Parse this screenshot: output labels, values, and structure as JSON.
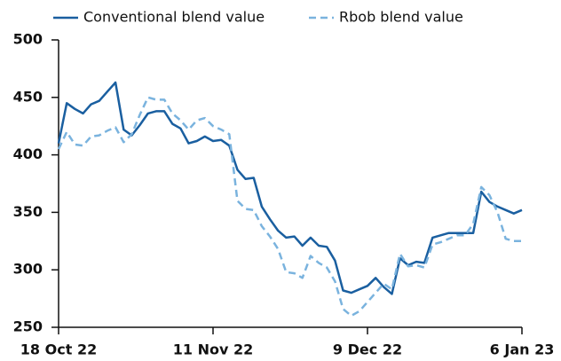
{
  "chart_data": {
    "type": "line",
    "categories": [
      "18 Oct 22",
      null,
      null,
      null,
      null,
      null,
      null,
      null,
      null,
      null,
      null,
      null,
      null,
      null,
      null,
      null,
      null,
      null,
      null,
      "11 Nov 22",
      null,
      null,
      null,
      null,
      null,
      null,
      null,
      null,
      null,
      null,
      null,
      null,
      null,
      null,
      null,
      null,
      null,
      null,
      "9 Dec 22",
      null,
      null,
      null,
      null,
      null,
      null,
      null,
      null,
      null,
      null,
      null,
      null,
      null,
      null,
      null,
      null,
      null,
      null,
      "6 Jan 23"
    ],
    "series": [
      {
        "name": "Conventional blend value",
        "color": "#1a5fa0",
        "dash": false,
        "values": [
          410,
          445,
          440,
          436,
          444,
          447,
          455,
          463,
          422,
          417,
          426,
          436,
          438,
          438,
          427,
          423,
          410,
          412,
          416,
          412,
          413,
          408,
          387,
          379,
          380,
          355,
          344,
          334,
          328,
          329,
          321,
          328,
          321,
          320,
          308,
          282,
          280,
          283,
          286,
          293,
          285,
          279,
          310,
          304,
          307,
          306,
          328,
          330,
          332,
          332,
          332,
          332,
          368,
          359,
          355,
          352,
          349,
          352
        ]
      },
      {
        "name": "Rbob blend value",
        "color": "#7ab3de",
        "dash": true,
        "values": [
          405,
          420,
          409,
          408,
          416,
          417,
          421,
          424,
          411,
          418,
          435,
          450,
          448,
          448,
          436,
          430,
          422,
          430,
          432,
          425,
          422,
          418,
          360,
          353,
          352,
          338,
          329,
          318,
          298,
          297,
          293,
          312,
          306,
          302,
          290,
          266,
          260,
          264,
          272,
          280,
          288,
          283,
          314,
          303,
          304,
          302,
          322,
          324,
          327,
          330,
          330,
          340,
          372,
          365,
          350,
          327,
          325,
          325
        ]
      }
    ],
    "ylim": [
      250,
      500
    ],
    "yticks": [
      250,
      300,
      350,
      400,
      450,
      500
    ],
    "grid": false
  }
}
